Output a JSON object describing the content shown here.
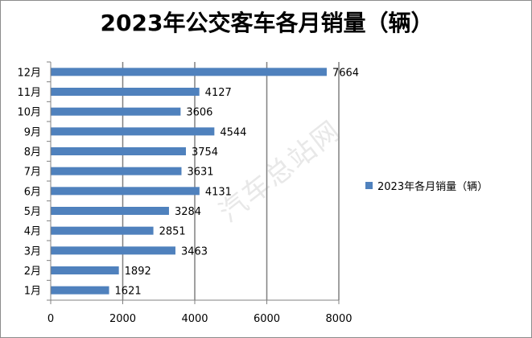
{
  "chart_data": {
    "type": "bar",
    "orientation": "horizontal",
    "title": "2023年公交客车各月销量（辆）",
    "categories": [
      "1月",
      "2月",
      "3月",
      "4月",
      "5月",
      "6月",
      "7月",
      "8月",
      "9月",
      "10月",
      "11月",
      "12月"
    ],
    "series": [
      {
        "name": "2023年各月销量（辆）",
        "values": [
          1621,
          1892,
          3463,
          2851,
          3284,
          4131,
          3631,
          3754,
          4544,
          3606,
          4127,
          7664
        ]
      }
    ],
    "xlim": [
      0,
      8000
    ],
    "xticks": [
      "0",
      "2000",
      "4000",
      "6000",
      "8000"
    ],
    "grid": "vertical",
    "legend_position": "right",
    "bar_color": "#4f81bd",
    "gridline_color": "#808080"
  },
  "watermark": "汽车总站网"
}
